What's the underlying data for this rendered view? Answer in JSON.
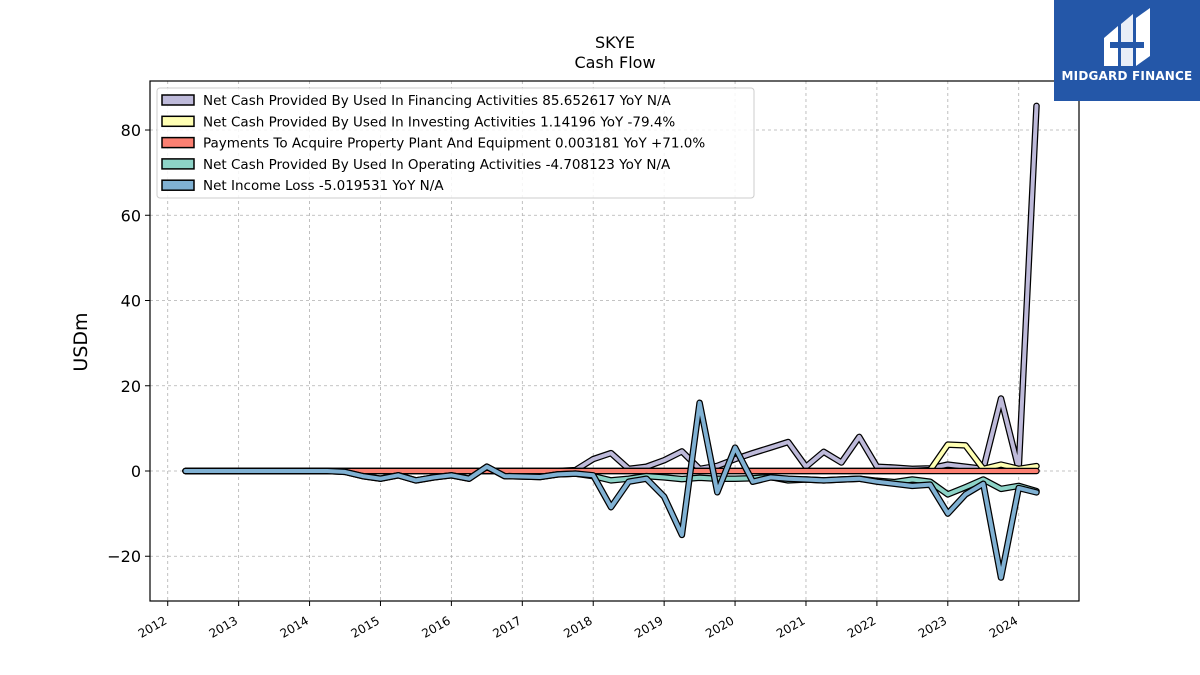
{
  "chart_data": {
    "type": "line",
    "title": "SKYE",
    "subtitle": "Cash Flow",
    "ylabel": "USDm",
    "xlabel": "",
    "xlim": [
      2011.75,
      2024.85
    ],
    "ylim": [
      -30.5,
      91.5
    ],
    "x_ticks": [
      "2012",
      "2013",
      "2014",
      "2015",
      "2016",
      "2017",
      "2018",
      "2019",
      "2020",
      "2021",
      "2022",
      "2023",
      "2024"
    ],
    "y_ticks": [
      -20,
      0,
      20,
      40,
      60,
      80
    ],
    "grid": true,
    "legend_position": "top-left",
    "series": [
      {
        "name": "Net Cash Provided By Used In Financing Activities  85.652617 YoY N/A",
        "color": "#bebada",
        "x": [
          2012.25,
          2013.25,
          2014.25,
          2015.0,
          2016.0,
          2016.5,
          2017.0,
          2017.5,
          2017.75,
          2018.0,
          2018.25,
          2018.5,
          2018.75,
          2019.0,
          2019.25,
          2019.5,
          2019.75,
          2020.0,
          2020.25,
          2020.5,
          2020.75,
          2021.0,
          2021.25,
          2021.5,
          2021.75,
          2022.0,
          2022.25,
          2022.5,
          2022.75,
          2023.0,
          2023.25,
          2023.5,
          2023.75,
          2024.0,
          2024.25
        ],
        "y": [
          0,
          0,
          0,
          0,
          0,
          0,
          0,
          0,
          0.2,
          2.8,
          4.2,
          0.5,
          1.0,
          2.5,
          4.6,
          0.5,
          1.2,
          2.8,
          4.2,
          5.5,
          6.8,
          1.0,
          4.5,
          2.0,
          8.0,
          1.0,
          0.8,
          0.5,
          0.6,
          1.5,
          1.0,
          0.5,
          17.0,
          0.5,
          85.65
        ]
      },
      {
        "name": "Net Cash Provided By Used In Investing Activities  1.14196 YoY -79.4%",
        "color": "#ffffb3",
        "x": [
          2012.25,
          2013.25,
          2014.25,
          2015.0,
          2016.0,
          2017.0,
          2018.0,
          2018.5,
          2019.0,
          2019.5,
          2020.0,
          2020.5,
          2021.0,
          2021.5,
          2022.0,
          2022.5,
          2022.75,
          2023.0,
          2023.25,
          2023.5,
          2023.75,
          2024.0,
          2024.25
        ],
        "y": [
          0,
          0,
          0,
          0,
          0,
          0,
          0,
          0,
          0,
          0,
          0,
          0,
          0,
          0,
          0,
          0,
          0.2,
          6.2,
          6.0,
          0.5,
          1.5,
          0.5,
          1.14
        ]
      },
      {
        "name": "Payments To Acquire Property Plant And Equipment  0.003181 YoY +71.0%",
        "color": "#fb8072",
        "x": [
          2012.25,
          2013.25,
          2014.25,
          2014.5,
          2015.0,
          2015.25,
          2015.5,
          2016.0,
          2016.5,
          2017.0,
          2017.5,
          2018.0,
          2018.5,
          2019.0,
          2019.5,
          2020.0,
          2020.5,
          2021.0,
          2021.5,
          2022.0,
          2022.5,
          2023.0,
          2023.5,
          2024.0,
          2024.25
        ],
        "y": [
          0,
          0,
          0,
          0,
          0,
          0,
          0,
          0,
          0,
          0,
          0,
          0,
          0,
          0,
          0,
          0,
          0,
          0,
          0,
          0,
          0,
          0,
          0,
          0,
          0.0032
        ]
      },
      {
        "name": "Net Cash Provided By Used In Operating Activities  -4.708123 YoY N/A",
        "color": "#8dd3c7",
        "x": [
          2012.25,
          2013.25,
          2014.25,
          2014.5,
          2014.75,
          2015.0,
          2015.25,
          2015.5,
          2015.75,
          2016.0,
          2016.25,
          2016.5,
          2016.75,
          2017.0,
          2017.25,
          2017.5,
          2017.75,
          2018.0,
          2018.25,
          2018.5,
          2018.75,
          2019.0,
          2019.25,
          2019.5,
          2019.75,
          2020.0,
          2020.25,
          2020.5,
          2020.75,
          2021.0,
          2021.25,
          2021.5,
          2021.75,
          2022.0,
          2022.25,
          2022.5,
          2022.75,
          2023.0,
          2023.25,
          2023.5,
          2023.75,
          2024.0,
          2024.25
        ],
        "y": [
          0,
          0,
          0,
          -0.2,
          -1.2,
          -1.8,
          -1.0,
          -2.2,
          -1.5,
          -1.0,
          -1.8,
          1.0,
          -1.2,
          -1.3,
          -1.4,
          -0.8,
          -0.6,
          -1.2,
          -2.2,
          -1.8,
          -1.2,
          -1.5,
          -1.9,
          -1.6,
          -1.8,
          -1.8,
          -1.7,
          -1.4,
          -2.2,
          -2.0,
          -2.2,
          -2.0,
          -1.8,
          -2.3,
          -2.6,
          -2.0,
          -2.5,
          -5.5,
          -3.8,
          -2.0,
          -4.2,
          -3.5,
          -4.71
        ]
      },
      {
        "name": "Net Income Loss  -5.019531 YoY N/A",
        "color": "#80b1d3",
        "x": [
          2012.25,
          2013.25,
          2014.25,
          2014.5,
          2014.75,
          2015.0,
          2015.25,
          2015.5,
          2015.75,
          2016.0,
          2016.25,
          2016.5,
          2016.75,
          2017.0,
          2017.25,
          2017.5,
          2017.75,
          2018.0,
          2018.25,
          2018.5,
          2018.75,
          2019.0,
          2019.25,
          2019.5,
          2019.75,
          2020.0,
          2020.25,
          2020.5,
          2020.75,
          2021.0,
          2021.25,
          2021.5,
          2021.75,
          2022.0,
          2022.25,
          2022.5,
          2022.75,
          2023.0,
          2023.25,
          2023.5,
          2023.75,
          2024.0,
          2024.25
        ],
        "y": [
          0,
          0,
          0,
          -0.2,
          -1.2,
          -1.8,
          -1.0,
          -2.2,
          -1.5,
          -1.0,
          -1.8,
          1.0,
          -1.2,
          -1.3,
          -1.4,
          -0.8,
          -0.6,
          -1.0,
          -8.5,
          -2.5,
          -1.8,
          -6.0,
          -15.0,
          16.0,
          -5.0,
          5.5,
          -2.5,
          -1.5,
          -1.8,
          -2.0,
          -2.2,
          -2.0,
          -1.8,
          -2.5,
          -3.0,
          -3.5,
          -3.2,
          -10.0,
          -5.5,
          -3.0,
          -25.0,
          -4.0,
          -5.02
        ]
      }
    ]
  },
  "logo": {
    "name": "MIDGARD FINANCE",
    "background": "#2457a8"
  }
}
